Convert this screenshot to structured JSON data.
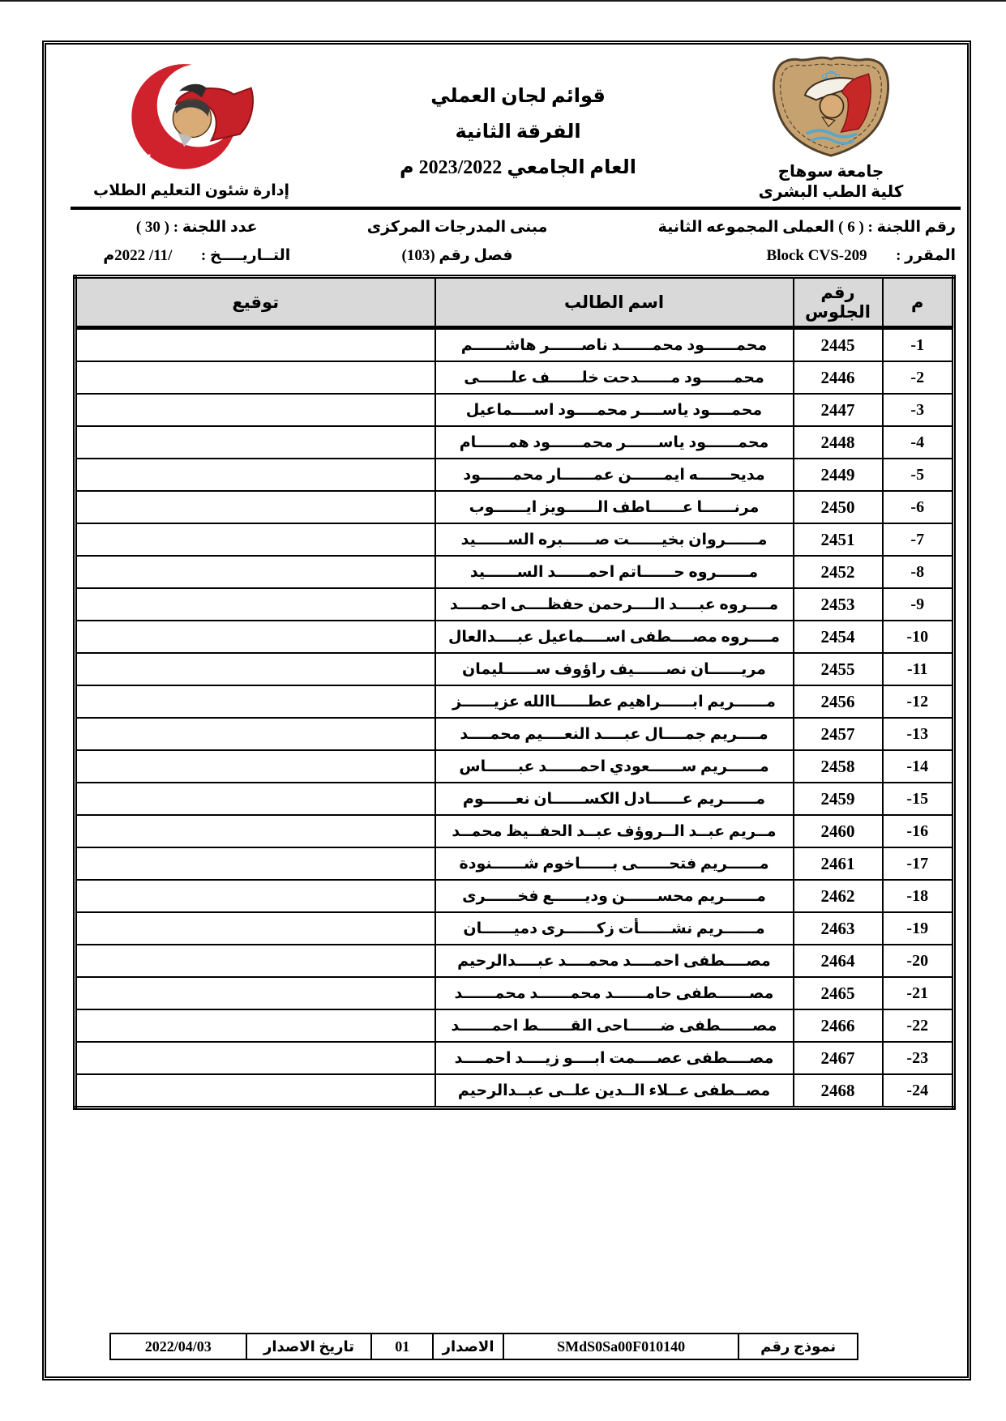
{
  "colors": {
    "border": "#000000",
    "table_header_bg": "#d9d9d9",
    "crescent_red": "#cf222d",
    "shield_tan": "#c6a270",
    "wave_blue": "#58a7cd",
    "face_tan": "#d8ab77"
  },
  "header": {
    "university_caption_line1": "جامعة سوهاج",
    "university_caption_line2": "كلية الطب البشرى",
    "title_lines": [
      "قوائم لجان العملي",
      "الفرقة الثانية",
      "العام الجامعي 2023/2022 م"
    ],
    "admin_caption": "إدارة شئون التعليم الطلاب",
    "crescent_logo_text_top": "جامعة سوهاج",
    "crescent_logo_text_bottom": "كلية الطب"
  },
  "info": {
    "committee_line": "رقم اللجنة : ( 6 ) العملى المجموعه الثانية",
    "building": "مبنى المدرجات المركزى",
    "count_line": "عدد اللجنة : ( 30 )",
    "course_label": "المقرر :",
    "course_value": "Block CVS-209",
    "room_line": "فصل رقم (103)",
    "date_label": "التــاريــــخ :",
    "date_value": "/11/ 2022م"
  },
  "table": {
    "headers": {
      "index": "م",
      "seat": "رقم الجلوس",
      "name": "اسم الطالب",
      "signature": "توقيع"
    },
    "rows": [
      {
        "index": "-1",
        "seat": "2445",
        "name": "محمــــــود محمــــــد ناصــــــر هاشــــــم"
      },
      {
        "index": "-2",
        "seat": "2446",
        "name": "محمــــــود مــــــدحت خلــــــف علــــــى"
      },
      {
        "index": "-3",
        "seat": "2447",
        "name": "محمــــود ياســــر محمــــود اســــماعيل"
      },
      {
        "index": "-4",
        "seat": "2448",
        "name": "محمــــــود ياســــــر محمــــــود همــــــام"
      },
      {
        "index": "-5",
        "seat": "2449",
        "name": "مديحــــــه ايمــــــن عمــــــار محمــــــود"
      },
      {
        "index": "-6",
        "seat": "2450",
        "name": "مرنــــــا عــــــاطف الــــــويز ايــــــوب"
      },
      {
        "index": "-7",
        "seat": "2451",
        "name": "مــــــروان بخيــــــت صــــــبره الســــــيد"
      },
      {
        "index": "-8",
        "seat": "2452",
        "name": "مــــــروه حــــــاتم احمــــــد الســــــيد"
      },
      {
        "index": "-9",
        "seat": "2453",
        "name": "مــــروه عبــــد الــــرحمن حفظــــى احمــــد"
      },
      {
        "index": "-10",
        "seat": "2454",
        "name": "مــــروه مصــــطفى اســــماعيل عبــــدالعال"
      },
      {
        "index": "-11",
        "seat": "2455",
        "name": "مريــــــان نصــــــيف راؤوف ســــــليمان"
      },
      {
        "index": "-12",
        "seat": "2456",
        "name": "مــــــريم ابــــــراهيم عطــــــاالله عزيــــــز"
      },
      {
        "index": "-13",
        "seat": "2457",
        "name": "مــــريم جمــــال عبــــد النعــــيم محمــــد"
      },
      {
        "index": "-14",
        "seat": "2458",
        "name": "مــــــريم ســــــعودي احمــــــد عبــــــاس"
      },
      {
        "index": "-15",
        "seat": "2459",
        "name": "مــــــريم عــــــادل الكســــــان نعــــــوم"
      },
      {
        "index": "-16",
        "seat": "2460",
        "name": "مــريم عبــد الــروؤف عبــد الحفــيظ محمــد"
      },
      {
        "index": "-17",
        "seat": "2461",
        "name": "مــــــريم فتحــــــى بــــــاخوم شــــــنودة"
      },
      {
        "index": "-18",
        "seat": "2462",
        "name": "مــــــريم محســــــن وديــــــع فخــــــرى"
      },
      {
        "index": "-19",
        "seat": "2463",
        "name": "مــــــريم نشــــــأت زكــــــرى دميــــــان"
      },
      {
        "index": "-20",
        "seat": "2464",
        "name": "مصــــطفى احمــــد محمــــد عبــــدالرحيم"
      },
      {
        "index": "-21",
        "seat": "2465",
        "name": "مصــــــطفى حامــــــد محمــــــد محمــــــد"
      },
      {
        "index": "-22",
        "seat": "2466",
        "name": "مصــــــطفى ضــــــاحى القــــــط احمــــــد"
      },
      {
        "index": "-23",
        "seat": "2467",
        "name": "مصــــطفى عصــــمت ابــــو زيــــد احمــــد"
      },
      {
        "index": "-24",
        "seat": "2468",
        "name": "مصــطفى عــلاء الــدين علــى عبــدالرحيم"
      }
    ]
  },
  "footer": {
    "form_label": "نموذج رقم",
    "form_value": "SMdS0Sa00F010140",
    "issue_label": "الاصدار",
    "issue_value": "01",
    "issue_date_label": "تاريخ الاصدار",
    "issue_date_value": "2022/04/03"
  }
}
